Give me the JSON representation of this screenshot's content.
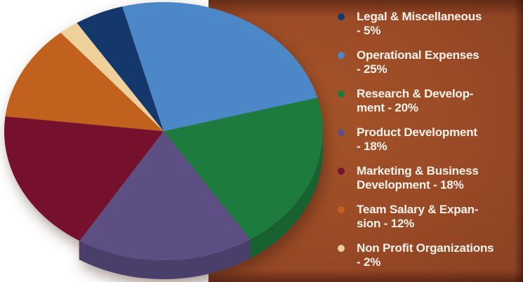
{
  "page": {
    "left_background": "#ffffff",
    "panel_background": "#9a4a26",
    "panel_edge_shade": "#5f2c1b",
    "legend_text_color": "#faf3ec"
  },
  "chart_data": {
    "type": "pie",
    "title": "",
    "labels": [
      "Legal & Miscellaneous",
      "Operational Expenses",
      "Research & Development",
      "Product Development",
      "Marketing & Business Development",
      "Team Salary & Expansion",
      "Non Profit Organizations"
    ],
    "values": [
      5,
      25,
      20,
      18,
      18,
      12,
      2
    ],
    "colors": [
      "#14386c",
      "#4c87c8",
      "#1e7b3e",
      "#5d4e84",
      "#75102d",
      "#c2611e",
      "#eed09b"
    ],
    "legend_lines": [
      [
        "Legal & Miscellaneous",
        "- 5%"
      ],
      [
        "Operational Expenses",
        "- 25%"
      ],
      [
        "Research & Develop-",
        "ment - 20%"
      ],
      [
        "Product Development",
        "- 18%"
      ],
      [
        "Marketing & Business",
        "Development - 18%"
      ],
      [
        "Team Salary & Expan-",
        "sion - 12%"
      ],
      [
        "Non Profit Organizations",
        "- 2%"
      ]
    ],
    "layout": {
      "style": "3d",
      "direction": "clockwise",
      "start_angle_deg": 237,
      "center": [
        233,
        187
      ],
      "radii": [
        227,
        184
      ],
      "depth": 27,
      "wall_range_deg": [
        0,
        122
      ],
      "wall_darken": 0.8,
      "legend_position": "right"
    }
  }
}
